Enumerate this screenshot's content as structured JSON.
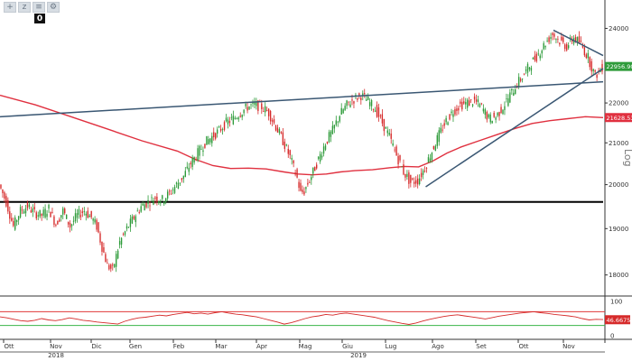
{
  "toolbar": {
    "buttons": [
      {
        "name": "crosshair-icon",
        "glyph": "+"
      },
      {
        "name": "zoom-icon",
        "glyph": "z"
      },
      {
        "name": "pan-icon",
        "glyph": "≡"
      },
      {
        "name": "settings-icon",
        "glyph": "⚙"
      }
    ],
    "badge": "0"
  },
  "chart_data": [
    {
      "type": "candlestick",
      "panel": "price",
      "scale": "log",
      "scale_label": "Log",
      "y_ticks": [
        18000,
        19000,
        20000,
        21000,
        22000,
        23000,
        24000
      ],
      "y_tick_labels": [
        "18000",
        "19000",
        "20000",
        "21000",
        "22000",
        "23000",
        "24000"
      ],
      "ylim": [
        17600,
        24600
      ],
      "x_month_labels": [
        "Ott",
        "Nov",
        "Dic",
        "Gen",
        "Feb",
        "Mar",
        "Apr",
        "Mag",
        "Giu",
        "Lug",
        "Ago",
        "Set",
        "Ott",
        "Nov"
      ],
      "x_year_labels": [
        "2018",
        "2019"
      ],
      "last_price_label": "22956.9004",
      "ma_label": "21628.5381",
      "colors": {
        "up": "#2e9b3a",
        "down": "#d62a2a",
        "ma": "#e0303f",
        "trend": "#3a5773",
        "support": "#000000",
        "last": "#2e9b3a"
      },
      "price_path": [
        [
          0,
          20000
        ],
        [
          4,
          19600
        ],
        [
          8,
          19050
        ],
        [
          12,
          19400
        ],
        [
          16,
          19500
        ],
        [
          20,
          19350
        ],
        [
          24,
          19300
        ],
        [
          28,
          19450
        ],
        [
          32,
          19100
        ],
        [
          36,
          19400
        ],
        [
          40,
          19050
        ],
        [
          44,
          19300
        ],
        [
          48,
          19400
        ],
        [
          52,
          19250
        ],
        [
          55,
          19050
        ],
        [
          58,
          18600
        ],
        [
          61,
          18200
        ],
        [
          64,
          18100
        ],
        [
          68,
          18700
        ],
        [
          72,
          19000
        ],
        [
          76,
          19250
        ],
        [
          80,
          19500
        ],
        [
          84,
          19600
        ],
        [
          88,
          19700
        ],
        [
          92,
          19650
        ],
        [
          96,
          19800
        ],
        [
          100,
          20000
        ],
        [
          104,
          20200
        ],
        [
          108,
          20500
        ],
        [
          112,
          20750
        ],
        [
          116,
          21000
        ],
        [
          120,
          21150
        ],
        [
          124,
          21300
        ],
        [
          128,
          21500
        ],
        [
          132,
          21600
        ],
        [
          136,
          21750
        ],
        [
          140,
          21900
        ],
        [
          144,
          21950
        ],
        [
          148,
          21900
        ],
        [
          152,
          21750
        ],
        [
          156,
          21400
        ],
        [
          160,
          21050
        ],
        [
          164,
          20650
        ],
        [
          168,
          20150
        ],
        [
          170,
          19800
        ],
        [
          172,
          19850
        ],
        [
          176,
          20200
        ],
        [
          180,
          20600
        ],
        [
          184,
          21000
        ],
        [
          188,
          21300
        ],
        [
          192,
          21700
        ],
        [
          196,
          21950
        ],
        [
          200,
          22100
        ],
        [
          204,
          22200
        ],
        [
          208,
          22050
        ],
        [
          212,
          21850
        ],
        [
          216,
          21500
        ],
        [
          220,
          21150
        ],
        [
          224,
          20700
        ],
        [
          228,
          20300
        ],
        [
          232,
          20050
        ],
        [
          236,
          20100
        ],
        [
          240,
          20400
        ],
        [
          244,
          20800
        ],
        [
          248,
          21200
        ],
        [
          252,
          21550
        ],
        [
          256,
          21800
        ],
        [
          260,
          21950
        ],
        [
          264,
          22000
        ],
        [
          268,
          22050
        ],
        [
          272,
          21900
        ],
        [
          276,
          21600
        ],
        [
          280,
          21650
        ],
        [
          284,
          21900
        ],
        [
          288,
          22200
        ],
        [
          292,
          22500
        ],
        [
          296,
          22750
        ],
        [
          300,
          23050
        ],
        [
          304,
          23300
        ],
        [
          308,
          23600
        ],
        [
          312,
          23850
        ],
        [
          316,
          23650
        ],
        [
          320,
          23500
        ],
        [
          324,
          23750
        ],
        [
          328,
          23550
        ],
        [
          332,
          23200
        ],
        [
          336,
          22700
        ],
        [
          340,
          22950
        ]
      ],
      "ma200_path": [
        [
          0,
          22200
        ],
        [
          20,
          21950
        ],
        [
          40,
          21650
        ],
        [
          60,
          21350
        ],
        [
          80,
          21050
        ],
        [
          100,
          20800
        ],
        [
          110,
          20600
        ],
        [
          120,
          20450
        ],
        [
          130,
          20380
        ],
        [
          140,
          20390
        ],
        [
          150,
          20370
        ],
        [
          160,
          20300
        ],
        [
          168,
          20250
        ],
        [
          176,
          20230
        ],
        [
          184,
          20250
        ],
        [
          192,
          20300
        ],
        [
          200,
          20330
        ],
        [
          210,
          20350
        ],
        [
          220,
          20400
        ],
        [
          228,
          20430
        ],
        [
          236,
          20420
        ],
        [
          244,
          20560
        ],
        [
          252,
          20750
        ],
        [
          260,
          20900
        ],
        [
          270,
          21050
        ],
        [
          280,
          21200
        ],
        [
          290,
          21350
        ],
        [
          300,
          21480
        ],
        [
          310,
          21550
        ],
        [
          320,
          21600
        ],
        [
          330,
          21650
        ],
        [
          340,
          21628
        ]
      ],
      "trendlines": [
        {
          "name": "resistance-trendline",
          "from": [
            0,
            21650
          ],
          "to": [
            340,
            22550
          ]
        },
        {
          "name": "uptrend-line",
          "from": [
            240,
            19950
          ],
          "to": [
            340,
            22900
          ]
        },
        {
          "name": "short-downtrend-line",
          "from": [
            312,
            23950
          ],
          "to": [
            340,
            23250
          ]
        },
        {
          "name": "support-line",
          "from": [
            0,
            19600
          ],
          "to": [
            340,
            19600
          ]
        }
      ]
    },
    {
      "type": "line",
      "panel": "oscillator",
      "ylim": [
        0,
        100
      ],
      "y_ticks": [
        100,
        0
      ],
      "y_tick_labels": [
        "100",
        "0"
      ],
      "levels": [
        70,
        30
      ],
      "last_value_label": "46.6675",
      "colors": {
        "line": "#d62a2a",
        "upper": "#e03a3a",
        "lower": "#3ab54a"
      },
      "values": [
        55,
        52,
        48,
        44,
        42,
        45,
        50,
        46,
        44,
        47,
        52,
        49,
        45,
        43,
        40,
        38,
        36,
        34,
        42,
        48,
        52,
        54,
        57,
        60,
        58,
        62,
        65,
        68,
        64,
        66,
        63,
        67,
        70,
        66,
        63,
        61,
        58,
        55,
        50,
        45,
        40,
        34,
        38,
        44,
        50,
        55,
        58,
        62,
        60,
        64,
        66,
        63,
        60,
        57,
        54,
        49,
        44,
        40,
        36,
        33,
        37,
        43,
        48,
        52,
        56,
        59,
        61,
        58,
        55,
        52,
        49,
        53,
        57,
        60,
        63,
        66,
        68,
        70,
        67,
        65,
        62,
        60,
        58,
        55,
        50,
        46,
        48,
        47
      ]
    }
  ]
}
